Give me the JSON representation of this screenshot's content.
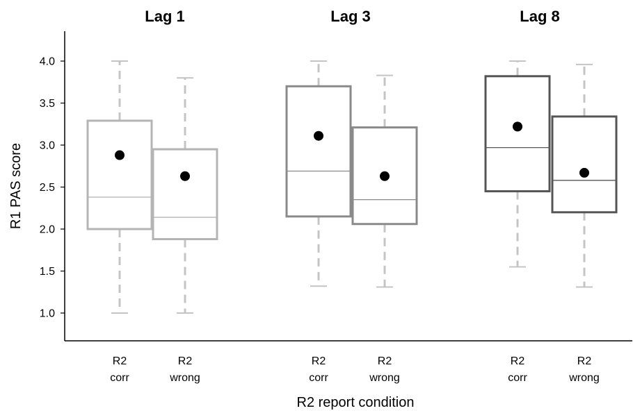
{
  "chart_data": {
    "type": "box",
    "xlabel": "R2 report condition",
    "ylabel": "R1 PAS score",
    "ylim": [
      0.7,
      4.35
    ],
    "yticks": [
      "1.0",
      "1.5",
      "2.0",
      "2.5",
      "3.0",
      "3.5",
      "4.0"
    ],
    "grid": false,
    "groups": [
      {
        "title": "Lag 1",
        "color": "#b4b4b4",
        "boxes": [
          {
            "category_line1": "R2",
            "category_line2": "corr",
            "whisker_low": 1.0,
            "q1": 2.0,
            "median": 2.38,
            "q3": 3.29,
            "whisker_high": 4.0,
            "mean": 2.88
          },
          {
            "category_line1": "R2",
            "category_line2": "wrong",
            "whisker_low": 1.0,
            "q1": 1.88,
            "median": 2.14,
            "q3": 2.95,
            "whisker_high": 3.8,
            "mean": 2.63
          }
        ]
      },
      {
        "title": "Lag 3",
        "color": "#8a8a8a",
        "boxes": [
          {
            "category_line1": "R2",
            "category_line2": "corr",
            "whisker_low": 1.32,
            "q1": 2.15,
            "median": 2.69,
            "q3": 3.7,
            "whisker_high": 4.0,
            "mean": 3.11
          },
          {
            "category_line1": "R2",
            "category_line2": "wrong",
            "whisker_low": 1.31,
            "q1": 2.06,
            "median": 2.35,
            "q3": 3.21,
            "whisker_high": 3.83,
            "mean": 2.63
          }
        ]
      },
      {
        "title": "Lag 8",
        "color": "#555555",
        "boxes": [
          {
            "category_line1": "R2",
            "category_line2": "corr",
            "whisker_low": 1.55,
            "q1": 2.45,
            "median": 2.97,
            "q3": 3.82,
            "whisker_high": 4.0,
            "mean": 3.22
          },
          {
            "category_line1": "R2",
            "category_line2": "wrong",
            "whisker_low": 1.31,
            "q1": 2.2,
            "median": 2.58,
            "q3": 3.34,
            "whisker_high": 3.96,
            "mean": 2.67
          }
        ]
      }
    ],
    "whisker_color": "#c4c4c4",
    "mean_marker_color": "#000000"
  }
}
